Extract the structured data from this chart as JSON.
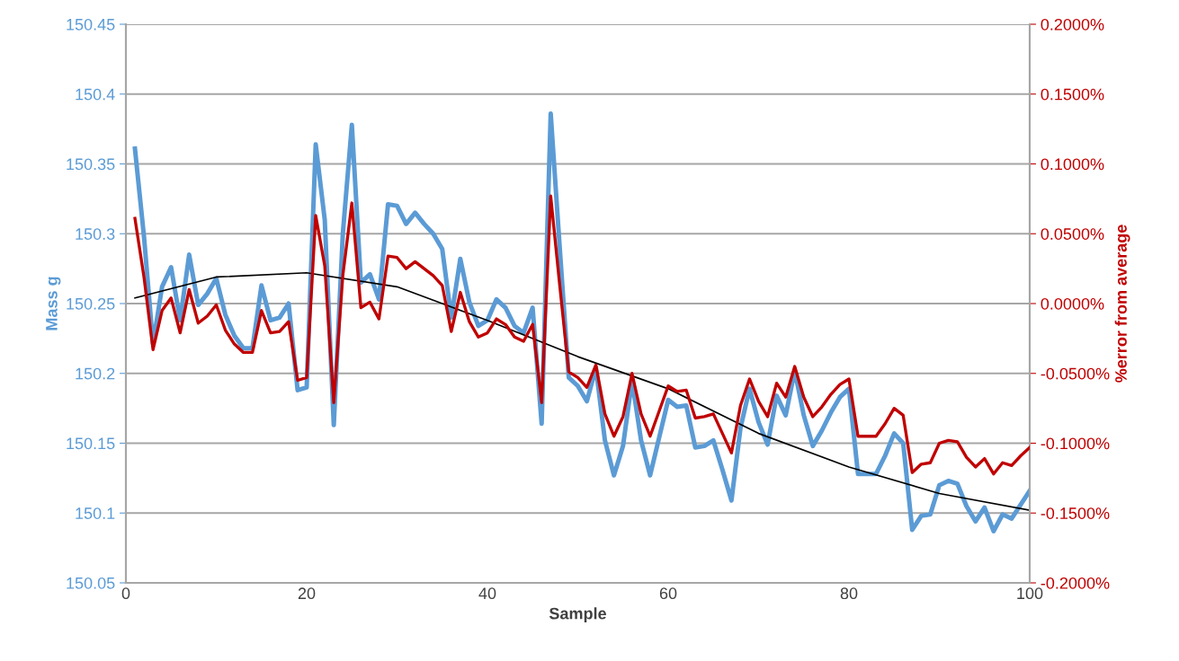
{
  "chart_data": {
    "type": "line",
    "xlabel": "Sample",
    "ylabel": "Mass g",
    "y2label": "%error from average",
    "x": [
      1,
      2,
      3,
      4,
      5,
      6,
      7,
      8,
      9,
      10,
      11,
      12,
      13,
      14,
      15,
      16,
      17,
      18,
      19,
      20,
      21,
      22,
      23,
      24,
      25,
      26,
      27,
      28,
      29,
      30,
      31,
      32,
      33,
      34,
      35,
      36,
      37,
      38,
      39,
      40,
      41,
      42,
      43,
      44,
      45,
      46,
      47,
      48,
      49,
      50,
      51,
      52,
      53,
      54,
      55,
      56,
      57,
      58,
      59,
      60,
      61,
      62,
      63,
      64,
      65,
      66,
      67,
      68,
      69,
      70,
      71,
      72,
      73,
      74,
      75,
      76,
      77,
      78,
      79,
      80,
      81,
      82,
      83,
      84,
      85,
      86,
      87,
      88,
      89,
      90,
      91,
      92,
      93,
      94,
      95,
      96,
      97,
      98,
      99,
      100
    ],
    "series": [
      {
        "color": "#5b9bd5",
        "values": [
          150.361,
          150.298,
          150.221,
          150.262,
          150.276,
          150.238,
          150.285,
          150.249,
          150.257,
          150.268,
          150.242,
          150.227,
          150.218,
          150.218,
          150.263,
          150.238,
          150.24,
          150.25,
          150.188,
          150.19,
          150.364,
          150.31,
          150.163,
          150.3,
          150.378,
          150.265,
          150.271,
          150.253,
          150.321,
          150.32,
          150.307,
          150.315,
          150.307,
          150.3,
          150.289,
          150.24,
          150.282,
          150.251,
          150.234,
          150.238,
          150.253,
          150.247,
          150.234,
          150.229,
          150.247,
          150.164,
          150.386,
          150.29,
          150.197,
          150.191,
          150.18,
          150.204,
          150.152,
          150.127,
          150.148,
          150.195,
          150.152,
          150.127,
          150.154,
          150.181,
          150.176,
          150.177,
          150.147,
          150.148,
          150.152,
          150.131,
          150.109,
          150.161,
          150.189,
          150.165,
          150.149,
          150.184,
          150.17,
          150.202,
          150.17,
          150.148,
          150.159,
          150.172,
          150.183,
          150.189,
          150.128,
          150.128,
          150.128,
          150.141,
          150.157,
          150.15,
          150.088,
          150.098,
          150.099,
          150.12,
          150.123,
          150.121,
          150.105,
          150.094,
          150.104,
          150.087,
          150.099,
          150.096,
          150.106,
          150.116
        ]
      },
      {
        "color": "#c00000",
        "axis": "y2",
        "values": [
          0.061,
          0.019,
          -0.033,
          -0.005,
          0.004,
          -0.021,
          0.01,
          -0.014,
          -0.009,
          -0.001,
          -0.019,
          -0.029,
          -0.035,
          -0.035,
          -0.005,
          -0.021,
          -0.02,
          -0.013,
          -0.055,
          -0.053,
          0.063,
          0.027,
          -0.071,
          0.02,
          0.072,
          -0.003,
          0.001,
          -0.011,
          0.034,
          0.033,
          0.025,
          0.03,
          0.025,
          0.02,
          0.013,
          -0.02,
          0.008,
          -0.013,
          -0.024,
          -0.021,
          -0.011,
          -0.015,
          -0.024,
          -0.027,
          -0.015,
          -0.071,
          0.077,
          0.013,
          -0.049,
          -0.053,
          -0.06,
          -0.044,
          -0.079,
          -0.095,
          -0.081,
          -0.05,
          -0.079,
          -0.095,
          -0.077,
          -0.059,
          -0.063,
          -0.062,
          -0.082,
          -0.081,
          -0.079,
          -0.093,
          -0.107,
          -0.073,
          -0.054,
          -0.07,
          -0.081,
          -0.057,
          -0.067,
          -0.045,
          -0.067,
          -0.081,
          -0.074,
          -0.065,
          -0.058,
          -0.054,
          -0.095,
          -0.095,
          -0.095,
          -0.086,
          -0.075,
          -0.08,
          -0.121,
          -0.115,
          -0.114,
          -0.1,
          -0.098,
          -0.099,
          -0.11,
          -0.117,
          -0.111,
          -0.122,
          -0.114,
          -0.116,
          -0.109,
          -0.103
        ]
      },
      {
        "color": "#000000",
        "x": [
          1,
          10,
          20,
          30,
          35,
          40,
          50,
          60,
          70,
          80,
          90,
          100
        ],
        "values": [
          150.254,
          150.269,
          150.272,
          150.262,
          150.25,
          150.238,
          150.212,
          150.189,
          150.157,
          150.133,
          150.114,
          150.102
        ]
      }
    ],
    "xlim": [
      0,
      100
    ],
    "xticks": [
      0,
      20,
      40,
      60,
      80,
      100
    ],
    "ylim": [
      150.05,
      150.45
    ],
    "yticks": [
      150.05,
      150.1,
      150.15,
      150.2,
      150.25,
      150.3,
      150.35,
      150.4,
      150.45
    ],
    "y2lim": [
      -0.2,
      0.2
    ],
    "y2ticks": [
      {
        "value": -0.2,
        "label": "-0.2000%"
      },
      {
        "value": -0.15,
        "label": "-0.1500%"
      },
      {
        "value": -0.1,
        "label": "-0.1000%"
      },
      {
        "value": -0.05,
        "label": "-0.0500%"
      },
      {
        "value": 0,
        "label": "0.0000%"
      },
      {
        "value": 0.05,
        "label": "0.0500%"
      },
      {
        "value": 0.1,
        "label": "0.1000%"
      },
      {
        "value": 0.15,
        "label": "0.1500%"
      },
      {
        "value": 0.2,
        "label": "0.2000%"
      }
    ],
    "grid": "y",
    "marker": "none",
    "line_style": "solid"
  }
}
